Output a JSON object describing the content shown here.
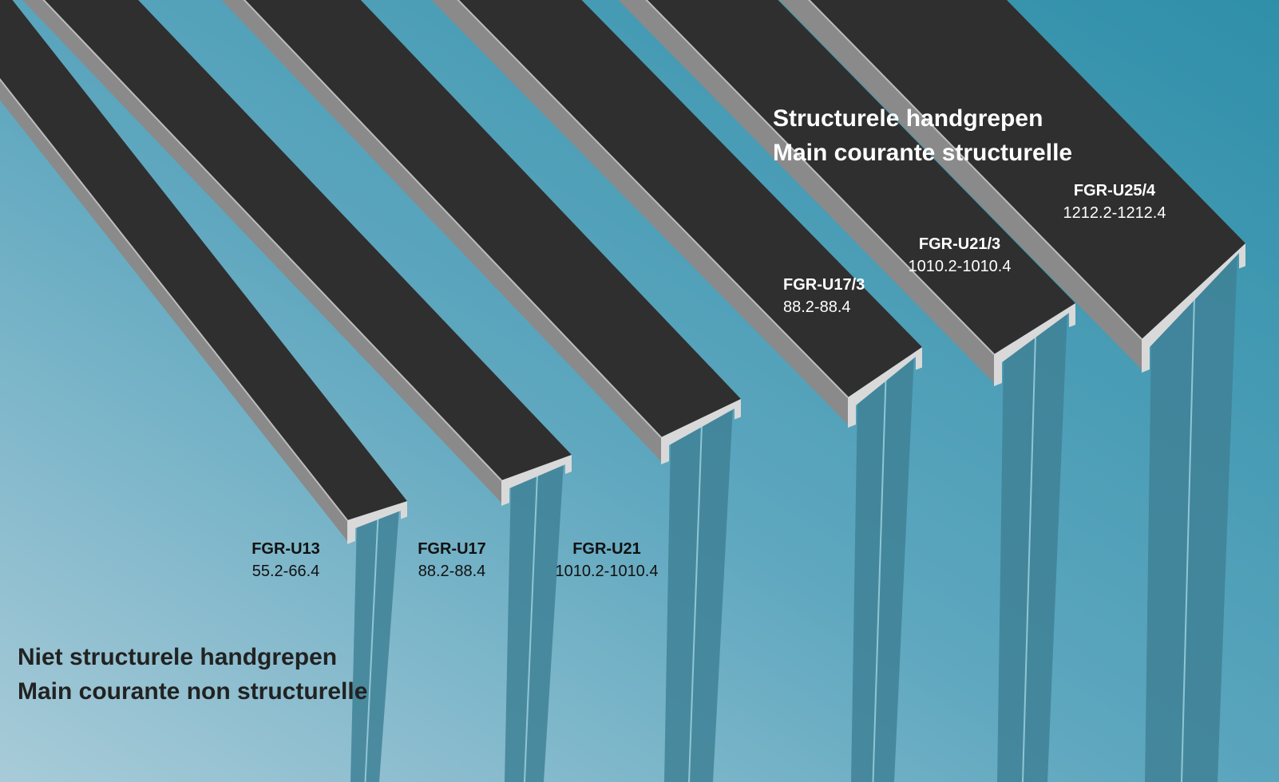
{
  "headings": {
    "structural": [
      "Structurele handgrepen",
      "Main courante structurelle"
    ],
    "non_structural": [
      "Niet structurele handgrepen",
      "Main courante non structurelle"
    ]
  },
  "products": [
    {
      "code": "FGR-U13",
      "range": "55.2-66.4"
    },
    {
      "code": "FGR-U17",
      "range": "88.2-88.4"
    },
    {
      "code": "FGR-U21",
      "range": "1010.2-1010.4"
    },
    {
      "code": "FGR-U17/3",
      "range": "88.2-88.4"
    },
    {
      "code": "FGR-U21/3",
      "range": "1010.2-1010.4"
    },
    {
      "code": "FGR-U25/4",
      "range": "1212.2-1212.4"
    }
  ]
}
